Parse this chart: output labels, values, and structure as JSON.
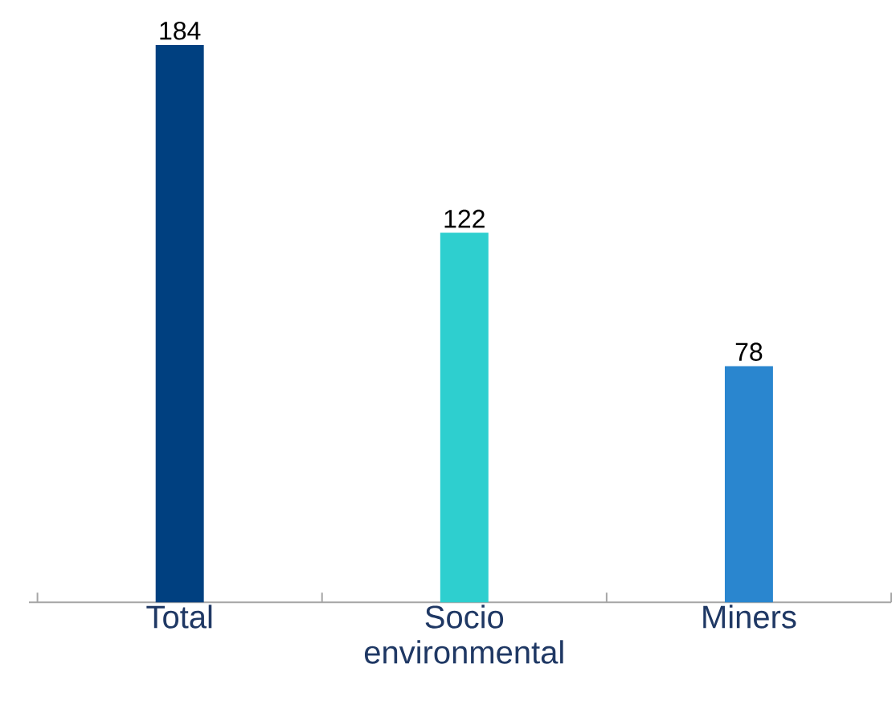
{
  "chart_data": {
    "type": "bar",
    "categories": [
      "Total",
      "Socio environmental",
      "Miners"
    ],
    "values": [
      184,
      122,
      78
    ],
    "colors": [
      "#004080",
      "#2ecfcf",
      "#2a86cf"
    ],
    "data_labels": true
  }
}
